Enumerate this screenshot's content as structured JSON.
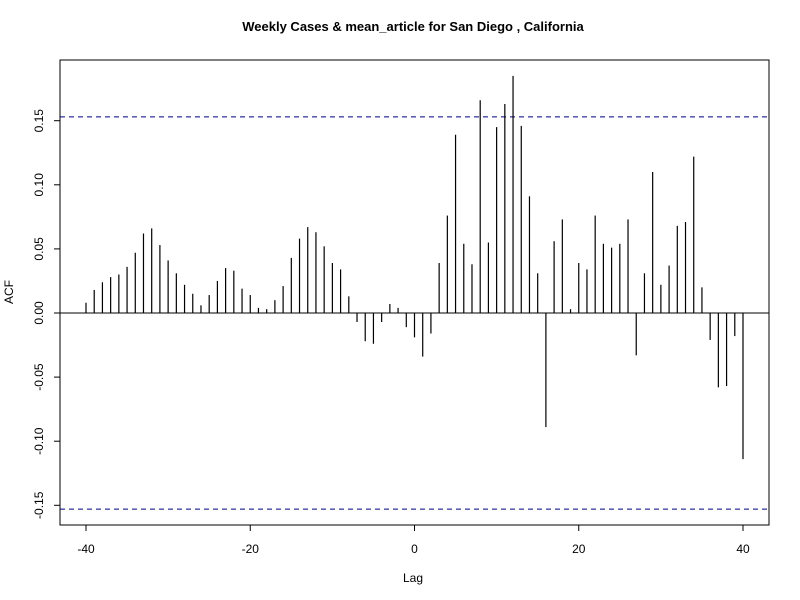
{
  "chart_data": {
    "type": "bar",
    "title": "Weekly Cases & mean_article for San Diego , California",
    "xlabel": "Lag",
    "ylabel": "ACF",
    "xlim": [
      -40,
      40
    ],
    "ylim": [
      -0.165,
      0.185
    ],
    "x_ticks": [
      {
        "value": -40,
        "label": "-40"
      },
      {
        "value": -20,
        "label": "-20"
      },
      {
        "value": 0,
        "label": "0"
      },
      {
        "value": 20,
        "label": "20"
      },
      {
        "value": 40,
        "label": "40"
      }
    ],
    "y_ticks": [
      {
        "value": -0.15,
        "label": "-0.15"
      },
      {
        "value": -0.1,
        "label": "-0.10"
      },
      {
        "value": -0.05,
        "label": "-0.05"
      },
      {
        "value": 0.0,
        "label": "0.00"
      },
      {
        "value": 0.05,
        "label": "0.05"
      },
      {
        "value": 0.1,
        "label": "0.10"
      },
      {
        "value": 0.15,
        "label": "0.15"
      }
    ],
    "confidence_bounds": [
      0.153,
      -0.153
    ],
    "colors": {
      "bars": "#000000",
      "bounds": "#000080",
      "zero_line": "#000000"
    },
    "lags": [
      -40,
      -39,
      -38,
      -37,
      -36,
      -35,
      -34,
      -33,
      -32,
      -31,
      -30,
      -29,
      -28,
      -27,
      -26,
      -25,
      -24,
      -23,
      -22,
      -21,
      -20,
      -19,
      -18,
      -17,
      -16,
      -15,
      -14,
      -13,
      -12,
      -11,
      -10,
      -9,
      -8,
      -7,
      -6,
      -5,
      -4,
      -3,
      -2,
      -1,
      0,
      1,
      2,
      3,
      4,
      5,
      6,
      7,
      8,
      9,
      10,
      11,
      12,
      13,
      14,
      15,
      16,
      17,
      18,
      19,
      20,
      21,
      22,
      23,
      24,
      25,
      26,
      27,
      28,
      29,
      30,
      31,
      32,
      33,
      34,
      35,
      36,
      37,
      38,
      39,
      40
    ],
    "values": [
      0.008,
      0.018,
      0.024,
      0.028,
      0.03,
      0.036,
      0.047,
      0.062,
      0.066,
      0.053,
      0.041,
      0.031,
      0.022,
      0.015,
      0.006,
      0.014,
      0.025,
      0.035,
      0.033,
      0.019,
      0.014,
      0.004,
      0.003,
      0.01,
      0.021,
      0.043,
      0.058,
      0.067,
      0.063,
      0.052,
      0.039,
      0.034,
      0.013,
      -0.007,
      -0.022,
      -0.024,
      -0.007,
      0.007,
      0.004,
      -0.011,
      -0.019,
      -0.034,
      -0.016,
      0.039,
      0.076,
      0.139,
      0.054,
      0.038,
      0.166,
      0.055,
      0.145,
      0.163,
      0.185,
      0.146,
      0.091,
      0.031,
      -0.089,
      0.056,
      0.073,
      0.003,
      0.039,
      0.034,
      0.076,
      0.054,
      0.051,
      0.054,
      0.073,
      -0.033,
      0.031,
      0.11,
      0.022,
      0.037,
      0.068,
      0.071,
      0.122,
      0.02,
      -0.021,
      -0.058,
      -0.057,
      -0.018,
      -0.114
    ]
  }
}
